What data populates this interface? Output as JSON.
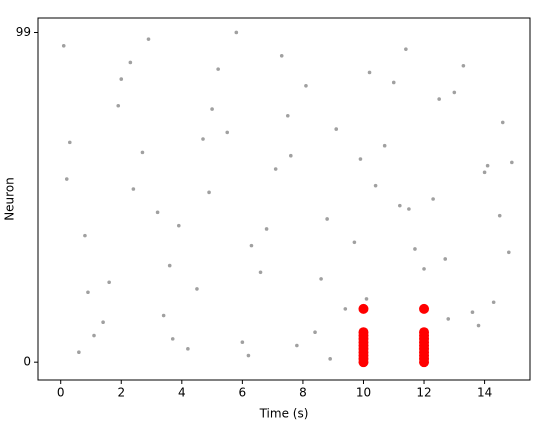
{
  "chart_data": {
    "type": "scatter",
    "xlabel": "Time (s)",
    "ylabel": "Neuron",
    "xlim": [
      -0.75,
      15.5
    ],
    "ylim": [
      -5.35,
      103.35
    ],
    "xticks": [
      0,
      2,
      4,
      6,
      8,
      10,
      12,
      14
    ],
    "yticks": [
      0,
      99
    ],
    "series": [
      {
        "color": "#a0a0a0",
        "size": 1.8,
        "x": [
          0.1,
          1.4,
          2.7,
          3.9,
          5.2,
          6.6,
          7.8,
          9.1,
          10.4,
          11.7,
          13.0,
          14.3,
          14.9,
          0.6,
          1.9,
          3.2,
          4.5,
          5.8,
          7.1,
          8.4,
          9.7,
          11.0,
          12.3,
          13.6,
          14.6,
          0.3,
          1.1,
          2.3,
          3.6,
          4.9,
          6.2,
          7.5,
          8.8,
          10.1,
          11.4,
          12.7,
          14.0,
          0.8,
          2.0,
          3.4,
          4.7,
          6.0,
          7.3,
          8.6,
          9.9,
          11.2,
          12.5,
          13.8,
          14.8,
          0.2,
          1.6,
          2.9,
          4.2,
          5.5,
          6.8,
          8.1,
          9.4,
          10.7,
          12.0,
          13.3,
          14.5,
          0.9,
          2.4,
          3.7,
          5.0,
          6.3,
          7.6,
          8.9,
          10.2,
          11.5,
          12.8,
          14.1
        ],
        "values": [
          95,
          12,
          63,
          41,
          88,
          27,
          5,
          70,
          53,
          34,
          81,
          18,
          60,
          3,
          77,
          45,
          22,
          99,
          58,
          9,
          36,
          84,
          49,
          15,
          72,
          66,
          8,
          90,
          29,
          51,
          2,
          74,
          43,
          19,
          94,
          31,
          57,
          38,
          85,
          14,
          67,
          6,
          92,
          25,
          61,
          47,
          79,
          11,
          33,
          55,
          24,
          97,
          4,
          69,
          40,
          83,
          16,
          65,
          28,
          89,
          44,
          21,
          52,
          7,
          76,
          35,
          62,
          1,
          87,
          46,
          13,
          59
        ]
      },
      {
        "color": "#ff0000",
        "size": 5,
        "x": [
          10,
          10,
          10,
          10,
          10,
          10,
          10,
          10,
          10,
          10,
          10,
          12,
          12,
          12,
          12,
          12,
          12,
          12,
          12,
          12,
          12,
          12
        ],
        "values": [
          0,
          1,
          2,
          3,
          4,
          5,
          6,
          7,
          8,
          9,
          16,
          0,
          1,
          2,
          3,
          4,
          5,
          6,
          7,
          8,
          9,
          16
        ]
      }
    ]
  }
}
